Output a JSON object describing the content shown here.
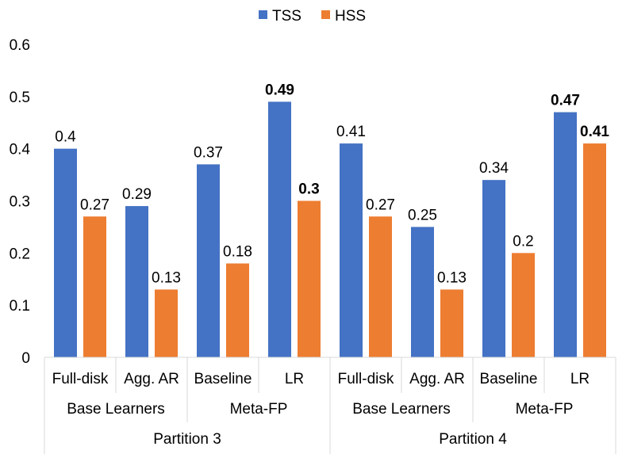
{
  "chart_data": {
    "type": "bar",
    "title": "",
    "xlabel": "",
    "ylabel": "",
    "ylim": [
      0,
      0.6
    ],
    "yticks": [
      "0",
      "0.1",
      "0.2",
      "0.3",
      "0.4",
      "0.5",
      "0.6"
    ],
    "grid": false,
    "legend": "top",
    "categories": [
      "Full-disk",
      "Agg. AR",
      "Baseline",
      "LR",
      "Full-disk",
      "Agg. AR",
      "Baseline",
      "LR"
    ],
    "groups": [
      "Base Learners",
      "Meta-FP",
      "Base Learners",
      "Meta-FP"
    ],
    "partitions": [
      "Partition 3",
      "Partition 4"
    ],
    "series": [
      {
        "name": "TSS",
        "color": "#4472C4",
        "values": [
          0.4,
          0.29,
          0.37,
          0.49,
          0.41,
          0.25,
          0.34,
          0.47
        ],
        "labels": [
          "0.4",
          "0.29",
          "0.37",
          "0.49",
          "0.41",
          "0.25",
          "0.34",
          "0.47"
        ],
        "bold": [
          false,
          false,
          false,
          true,
          false,
          false,
          false,
          true
        ]
      },
      {
        "name": "HSS",
        "color": "#ED7D31",
        "values": [
          0.27,
          0.13,
          0.18,
          0.3,
          0.27,
          0.13,
          0.2,
          0.41
        ],
        "labels": [
          "0.27",
          "0.13",
          "0.18",
          "0.3",
          "0.27",
          "0.13",
          "0.2",
          "0.41"
        ],
        "bold": [
          false,
          false,
          false,
          true,
          false,
          false,
          false,
          true
        ]
      }
    ]
  }
}
